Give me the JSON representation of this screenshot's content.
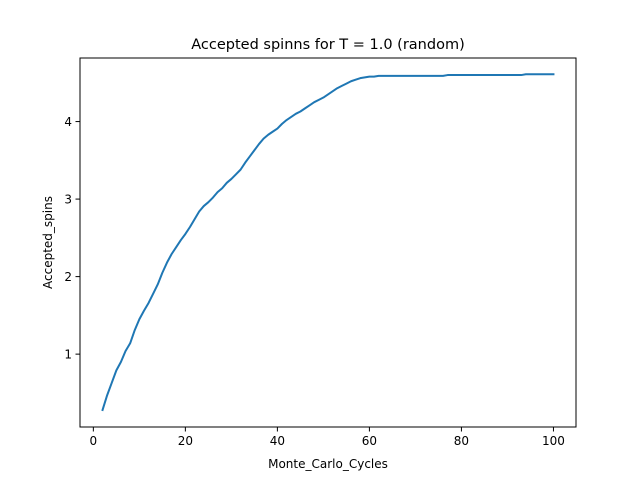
{
  "chart_data": {
    "type": "line",
    "title": "Accepted spinns for T = 1.0 (random)",
    "xlabel": "Monte_Carlo_Cycles",
    "ylabel": "Accepted_spins",
    "xlim": [
      -2.9,
      104.9
    ],
    "ylim": [
      0.06,
      4.82
    ],
    "xticks": [
      0,
      20,
      40,
      60,
      80,
      100
    ],
    "yticks": [
      1,
      2,
      3,
      4
    ],
    "grid": false,
    "legend": "none",
    "series_color": "#1f77b4",
    "series": [
      {
        "x": [
          2,
          3,
          4,
          5,
          6,
          7,
          8,
          9,
          10,
          11,
          12,
          13,
          14,
          15,
          16,
          17,
          18,
          19,
          20,
          21,
          22,
          23,
          24,
          25,
          26,
          27,
          28,
          29,
          30,
          31,
          32,
          33,
          34,
          35,
          36,
          37,
          38,
          39,
          40,
          41,
          42,
          43,
          44,
          45,
          46,
          47,
          48,
          49,
          50,
          51,
          52,
          53,
          54,
          55,
          56,
          57,
          58,
          59,
          60,
          61,
          62,
          63,
          64,
          65,
          66,
          67,
          68,
          69,
          70,
          71,
          72,
          73,
          74,
          75,
          76,
          77,
          78,
          79,
          80,
          81,
          82,
          83,
          84,
          85,
          86,
          87,
          88,
          89,
          90,
          91,
          92,
          93,
          94,
          95,
          96,
          97,
          98,
          99,
          100
        ],
        "y": [
          0.28,
          0.47,
          0.63,
          0.79,
          0.9,
          1.04,
          1.14,
          1.31,
          1.45,
          1.56,
          1.66,
          1.78,
          1.9,
          2.05,
          2.18,
          2.29,
          2.38,
          2.47,
          2.55,
          2.64,
          2.74,
          2.84,
          2.91,
          2.96,
          3.02,
          3.09,
          3.14,
          3.21,
          3.26,
          3.32,
          3.38,
          3.47,
          3.55,
          3.63,
          3.71,
          3.78,
          3.83,
          3.87,
          3.91,
          3.97,
          4.02,
          4.06,
          4.1,
          4.13,
          4.17,
          4.21,
          4.25,
          4.28,
          4.31,
          4.35,
          4.39,
          4.43,
          4.46,
          4.49,
          4.52,
          4.54,
          4.56,
          4.57,
          4.58,
          4.58,
          4.59,
          4.59,
          4.59,
          4.59,
          4.59,
          4.59,
          4.59,
          4.59,
          4.59,
          4.59,
          4.59,
          4.59,
          4.59,
          4.59,
          4.59,
          4.6,
          4.6,
          4.6,
          4.6,
          4.6,
          4.6,
          4.6,
          4.6,
          4.6,
          4.6,
          4.6,
          4.6,
          4.6,
          4.6,
          4.6,
          4.6,
          4.6,
          4.61,
          4.61,
          4.61,
          4.61,
          4.61,
          4.61,
          4.61
        ]
      }
    ]
  }
}
